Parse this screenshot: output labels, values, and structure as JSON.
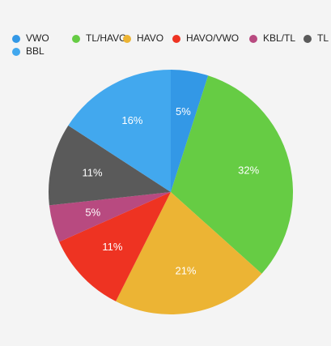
{
  "chart_data": {
    "type": "pie",
    "categories": [
      "VWO",
      "TL/HAVO",
      "HAVO",
      "HAVO/VWO",
      "KBL/TL",
      "TL",
      "BBL"
    ],
    "values": [
      5,
      32,
      21,
      11,
      5,
      11,
      16
    ],
    "value_labels": [
      "5%",
      "32%",
      "21%",
      "11%",
      "5%",
      "11%",
      "16%"
    ],
    "colors": [
      "#3398e6",
      "#66cc44",
      "#ecb434",
      "#ee3322",
      "#b84a80",
      "#5a5a5a",
      "#42a8ee"
    ],
    "legend": "top"
  }
}
